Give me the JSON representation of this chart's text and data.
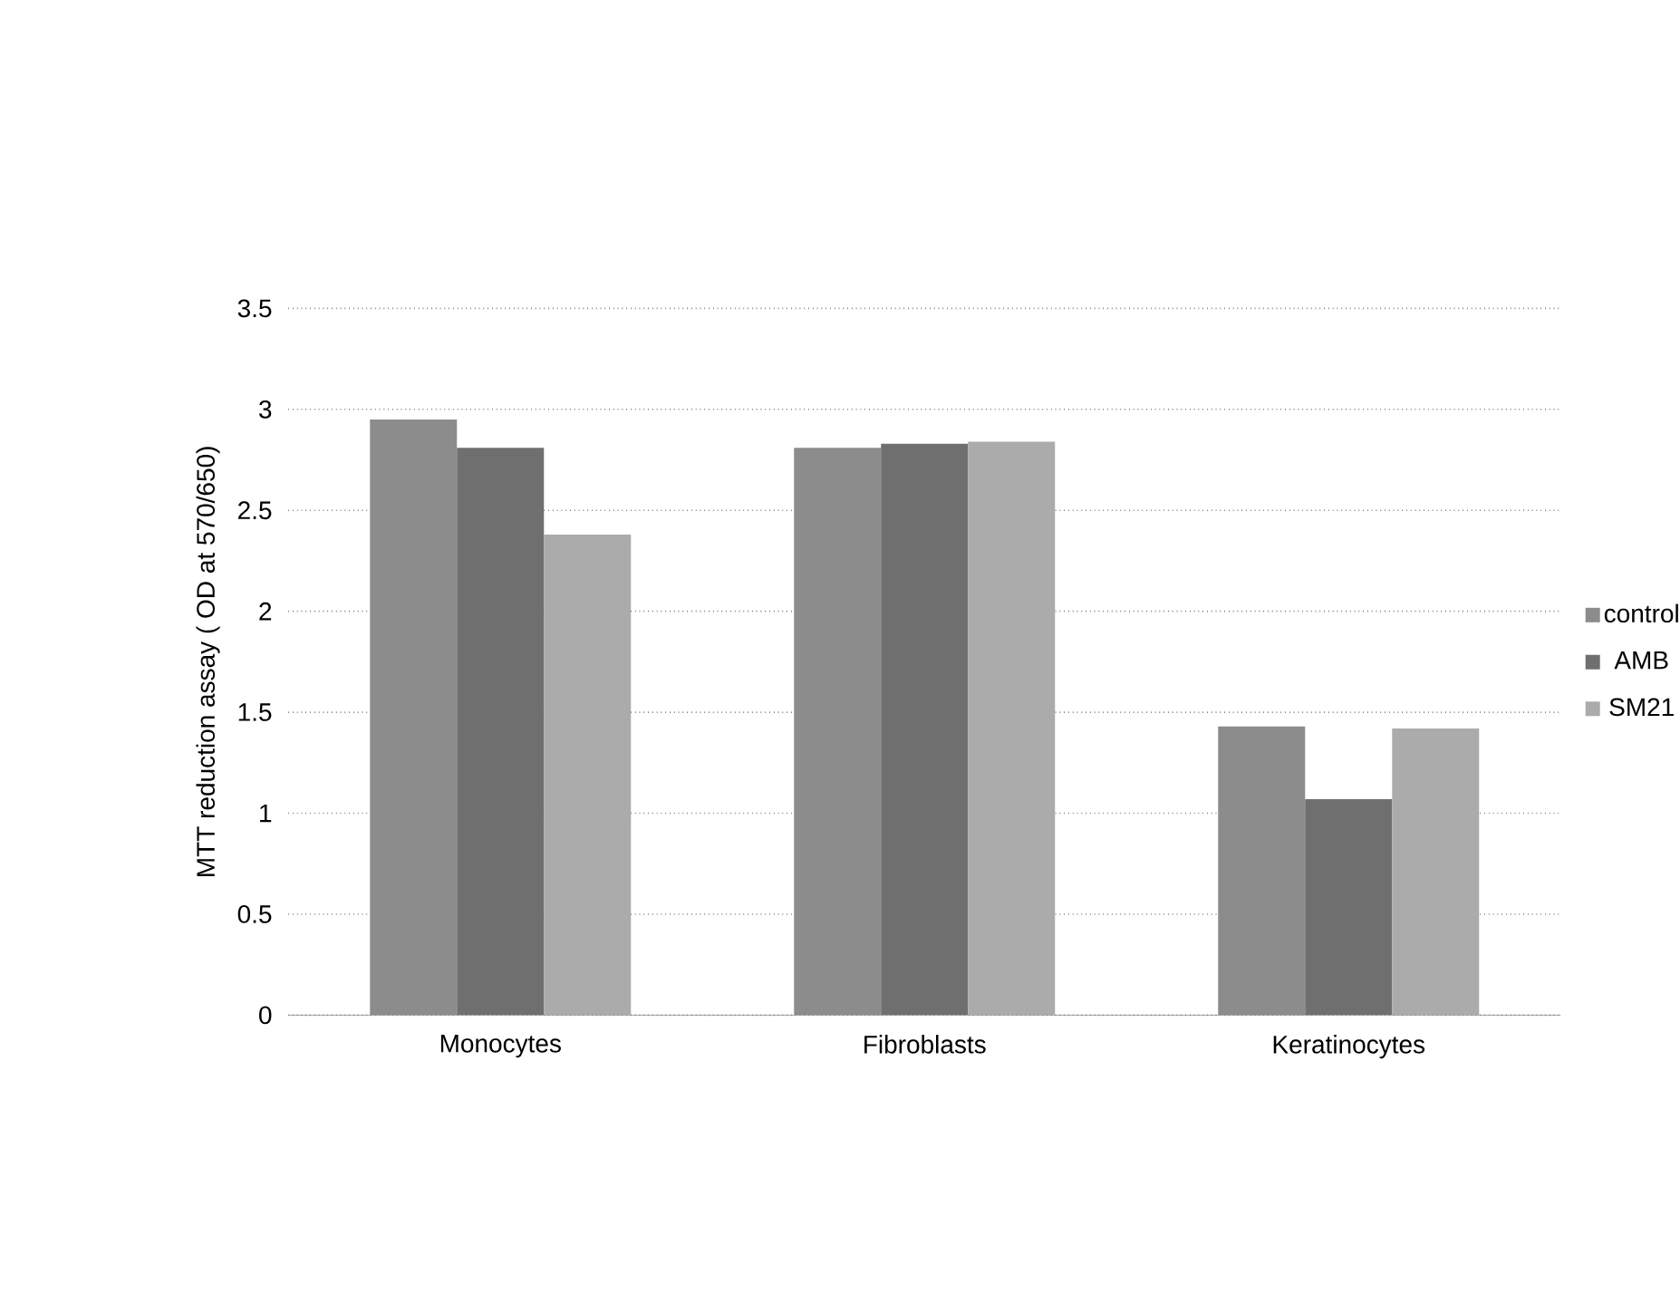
{
  "chart_data": {
    "type": "bar",
    "ylabel": "MTT reduction assay ( OD at 570/650)",
    "categories": [
      "Monocytes",
      "Fibroblasts",
      "Keratinocytes"
    ],
    "series": [
      {
        "name": "control",
        "color": "#8c8c8c",
        "values": [
          2.95,
          2.81,
          1.43
        ]
      },
      {
        "name": "AMB",
        "color": "#6f6f6f",
        "values": [
          2.81,
          2.83,
          1.07
        ]
      },
      {
        "name": "SM21",
        "color": "#ababab",
        "values": [
          2.38,
          2.84,
          1.42
        ]
      }
    ],
    "ylim": [
      0,
      3.5
    ],
    "yticks": [
      0,
      0.5,
      1,
      1.5,
      2,
      2.5,
      3,
      3.5
    ],
    "grid": "y",
    "legend": "right"
  }
}
